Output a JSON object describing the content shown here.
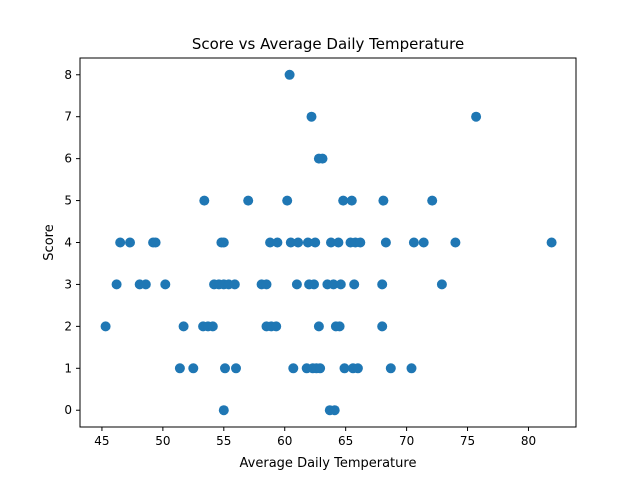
{
  "chart_data": {
    "type": "scatter",
    "title": "Score vs Average Daily Temperature",
    "xlabel": "Average Daily Temperature",
    "ylabel": "Score",
    "xlim": [
      43.2,
      83.9
    ],
    "ylim": [
      -0.4,
      8.4
    ],
    "xticks": [
      45,
      50,
      55,
      60,
      65,
      70,
      75,
      80
    ],
    "yticks": [
      0,
      1,
      2,
      3,
      4,
      5,
      6,
      7,
      8
    ],
    "grid": false,
    "color": "#1f77b4",
    "points": [
      [
        45.3,
        2
      ],
      [
        46.2,
        3
      ],
      [
        46.5,
        4
      ],
      [
        47.3,
        4
      ],
      [
        48.1,
        3
      ],
      [
        48.6,
        3
      ],
      [
        49.2,
        4
      ],
      [
        49.4,
        4
      ],
      [
        50.2,
        3
      ],
      [
        51.4,
        1
      ],
      [
        51.7,
        2
      ],
      [
        52.5,
        1
      ],
      [
        53.3,
        2
      ],
      [
        53.4,
        5
      ],
      [
        53.7,
        2
      ],
      [
        54.1,
        2
      ],
      [
        54.2,
        3
      ],
      [
        54.6,
        3
      ],
      [
        54.8,
        4
      ],
      [
        55.0,
        4
      ],
      [
        55.0,
        3
      ],
      [
        55.0,
        0
      ],
      [
        55.1,
        1
      ],
      [
        55.4,
        3
      ],
      [
        55.9,
        3
      ],
      [
        56.0,
        1
      ],
      [
        57.0,
        5
      ],
      [
        58.1,
        3
      ],
      [
        58.5,
        3
      ],
      [
        58.5,
        2
      ],
      [
        58.8,
        4
      ],
      [
        58.9,
        2
      ],
      [
        59.3,
        2
      ],
      [
        59.4,
        4
      ],
      [
        60.2,
        5
      ],
      [
        60.4,
        8
      ],
      [
        60.5,
        4
      ],
      [
        60.7,
        1
      ],
      [
        61.0,
        3
      ],
      [
        61.1,
        4
      ],
      [
        61.8,
        1
      ],
      [
        61.9,
        4
      ],
      [
        62.0,
        3
      ],
      [
        62.2,
        7
      ],
      [
        62.3,
        1
      ],
      [
        62.4,
        3
      ],
      [
        62.5,
        4
      ],
      [
        62.6,
        1
      ],
      [
        62.8,
        6
      ],
      [
        62.8,
        2
      ],
      [
        62.9,
        1
      ],
      [
        63.1,
        6
      ],
      [
        63.5,
        3
      ],
      [
        63.7,
        0
      ],
      [
        63.8,
        4
      ],
      [
        64.0,
        3
      ],
      [
        64.1,
        0
      ],
      [
        64.2,
        2
      ],
      [
        64.4,
        4
      ],
      [
        64.5,
        2
      ],
      [
        64.6,
        3
      ],
      [
        64.8,
        5
      ],
      [
        64.9,
        1
      ],
      [
        65.4,
        4
      ],
      [
        65.5,
        5
      ],
      [
        65.6,
        1
      ],
      [
        65.7,
        3
      ],
      [
        65.8,
        4
      ],
      [
        66.0,
        1
      ],
      [
        66.2,
        4
      ],
      [
        68.0,
        3
      ],
      [
        68.0,
        2
      ],
      [
        68.1,
        5
      ],
      [
        68.3,
        4
      ],
      [
        68.7,
        1
      ],
      [
        70.4,
        1
      ],
      [
        70.6,
        4
      ],
      [
        71.4,
        4
      ],
      [
        72.1,
        5
      ],
      [
        72.9,
        3
      ],
      [
        74.0,
        4
      ],
      [
        75.7,
        7
      ],
      [
        81.9,
        4
      ]
    ]
  }
}
